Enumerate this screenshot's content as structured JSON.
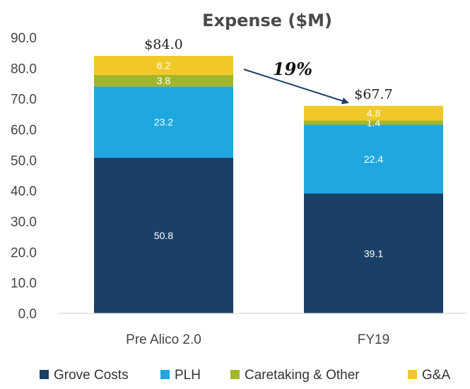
{
  "chart_data": {
    "type": "bar",
    "stacked": true,
    "title": "Expense ($M)",
    "categories": [
      "Pre Alico 2.0",
      "FY19"
    ],
    "series": [
      {
        "name": "Grove Costs",
        "color": "#1b4068",
        "values": [
          50.8,
          39.1
        ]
      },
      {
        "name": "PLH",
        "color": "#1fa8e0",
        "values": [
          23.2,
          22.4
        ]
      },
      {
        "name": "Caretaking & Other",
        "color": "#a3b52a",
        "values": [
          3.8,
          1.4
        ]
      },
      {
        "name": "G&A",
        "color": "#f0c928",
        "values": [
          6.2,
          4.8
        ]
      }
    ],
    "totals": [
      "$84.0",
      "$67.7"
    ],
    "ylim": [
      0,
      90
    ],
    "yticks": [
      "0.0",
      "10.0",
      "20.0",
      "30.0",
      "40.0",
      "50.0",
      "60.0",
      "70.0",
      "80.0",
      "90.0"
    ],
    "annotation": {
      "text": "19%",
      "arrow_color": "#1b4068"
    },
    "legend_position": "bottom",
    "grid": false
  }
}
